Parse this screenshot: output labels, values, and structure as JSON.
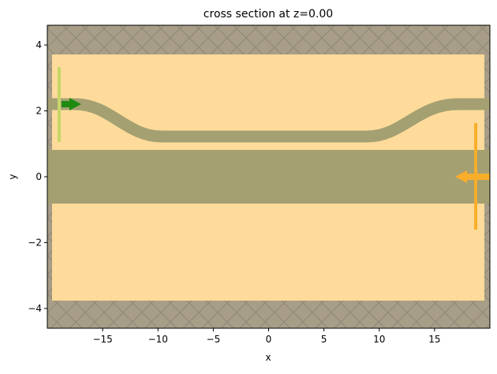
{
  "chart_data": {
    "type": "cross-section",
    "title": "cross section at z=0.00",
    "xlabel": "x",
    "ylabel": "y",
    "xlim": [
      -20,
      20
    ],
    "ylim": [
      -4.6,
      4.6
    ],
    "xticks": [
      {
        "value": -15,
        "label": "−15"
      },
      {
        "value": -10,
        "label": "−10"
      },
      {
        "value": -5,
        "label": "−5"
      },
      0,
      5,
      10,
      15
    ],
    "yticks": [
      {
        "value": -4,
        "label": "−4"
      },
      {
        "value": -2,
        "label": "−2"
      },
      0,
      2,
      4
    ]
  }
}
